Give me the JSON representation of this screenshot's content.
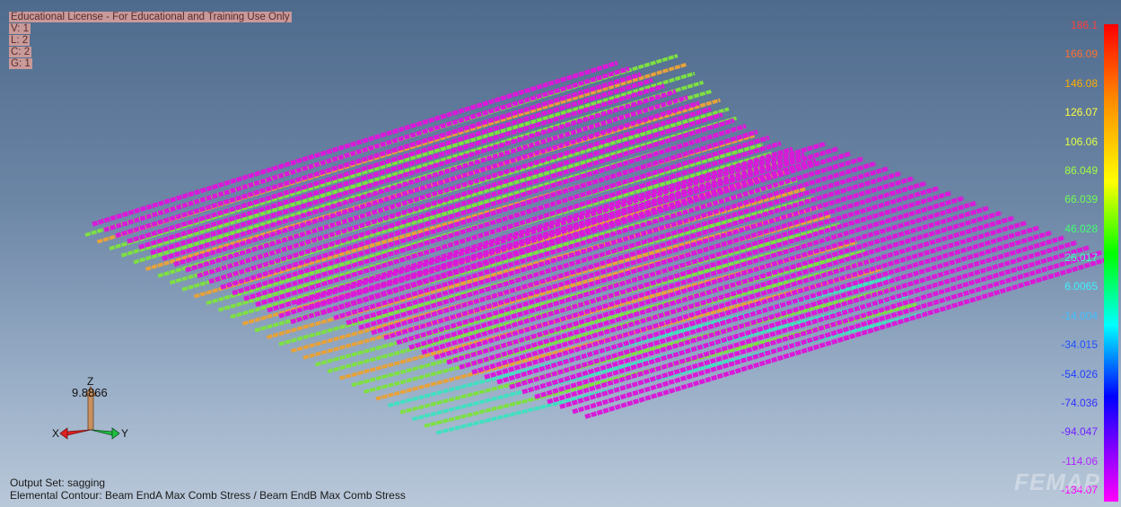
{
  "info": {
    "license": "Educational License - For Educational and Training Use Only",
    "view": "V: 1",
    "layer": "L: 2",
    "color": "C: 2",
    "group": "G: 1"
  },
  "legend": {
    "labels": [
      "186.1",
      "166.09",
      "146.08",
      "126.07",
      "106.06",
      "86.049",
      "66.039",
      "46.028",
      "26.017",
      "6.0065",
      "-14.004",
      "-34.015",
      "-54.026",
      "-74.036",
      "-94.047",
      "-114.06",
      "-134.07"
    ],
    "label_colors": [
      "#ff4040",
      "#ff7030",
      "#ffae00",
      "#ffff40",
      "#e0ff40",
      "#a0ff40",
      "#70ff50",
      "#40ff70",
      "#40ffc0",
      "#40f0ff",
      "#40c0ff",
      "#2050ff",
      "#2040ff",
      "#3030ff",
      "#7020ff",
      "#b020ff",
      "#ff00ff"
    ]
  },
  "triad": {
    "scale_value": "9.8866",
    "z_label": "Z",
    "x_label": "X",
    "y_label": "Y"
  },
  "footer": {
    "output_set": "Output Set: sagging",
    "contour": "Elemental Contour: Beam EndA Max Comb Stress / Beam EndB Max Comb Stress"
  },
  "watermark": "FEMAP",
  "colors": {
    "background_top": "#4e6a8c",
    "background_bottom": "#b9c8d9",
    "magenta_beams": "#d81ad8",
    "green_beams": "#7ee042",
    "orange_beams": "#e6a23a",
    "cyan_beams": "#40e0c0"
  }
}
